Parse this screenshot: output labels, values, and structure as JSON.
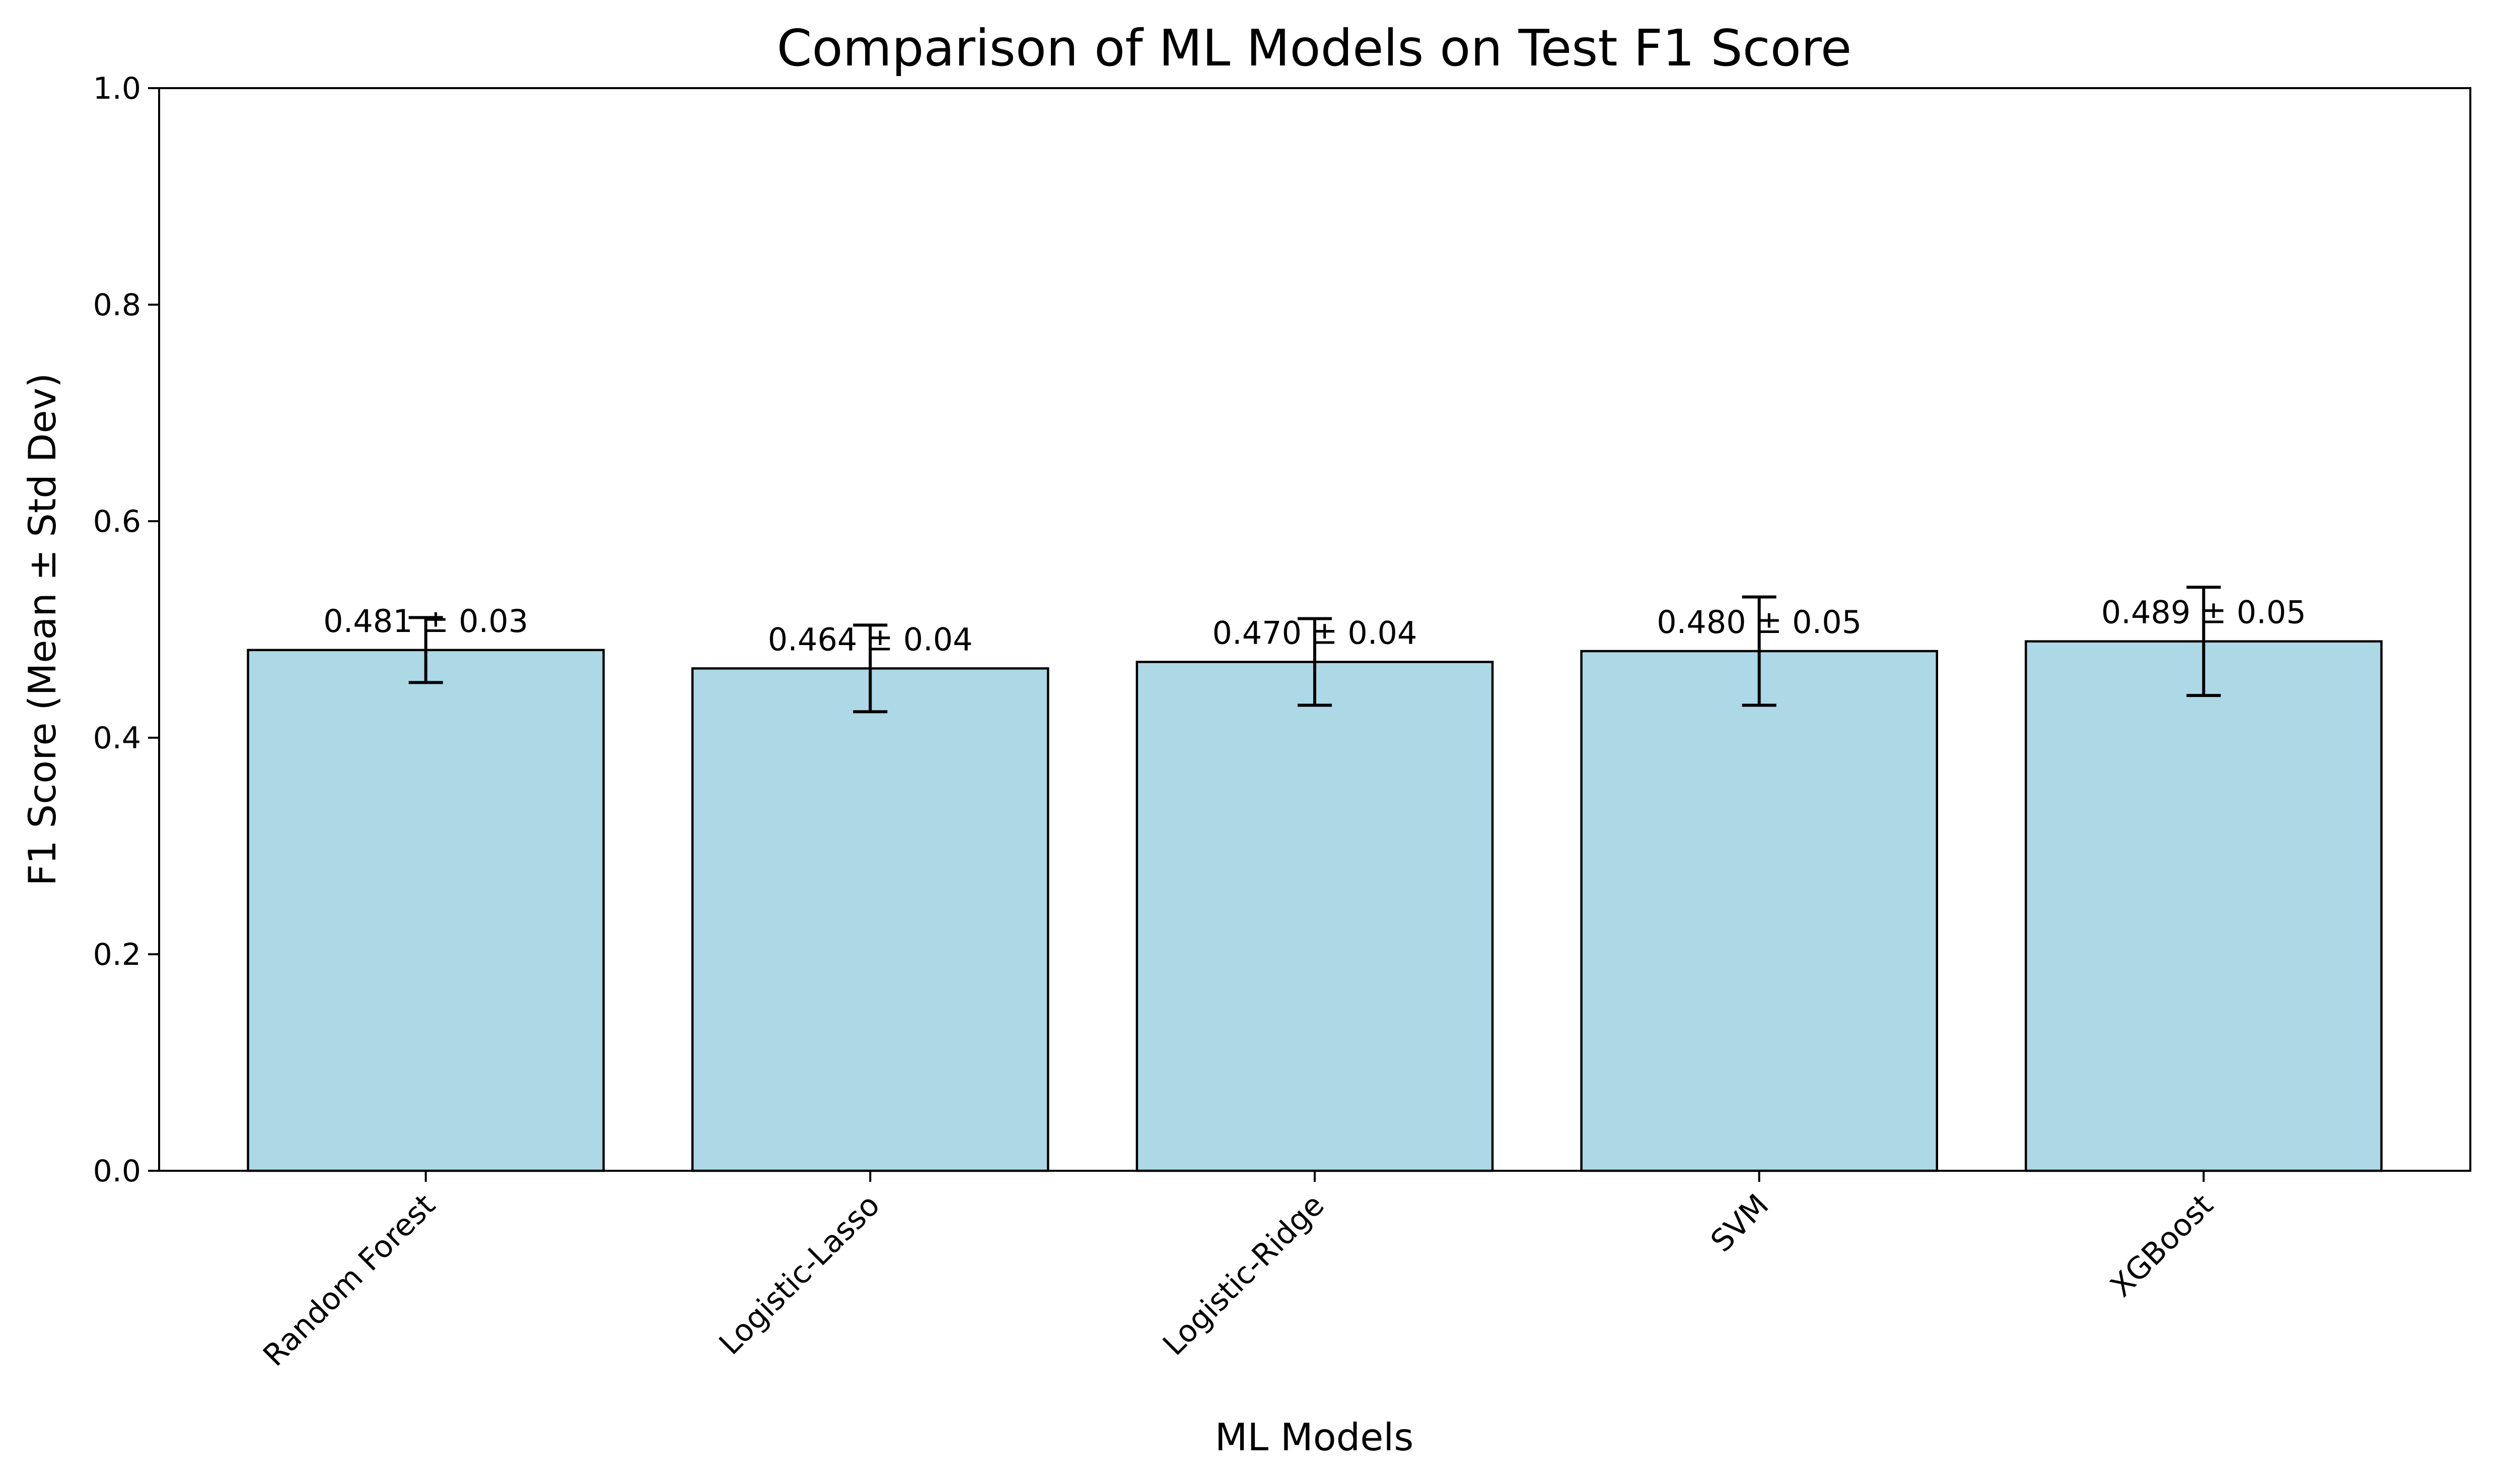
{
  "chart_data": {
    "type": "bar",
    "title": "Comparison of ML Models on Test F1 Score",
    "xlabel": "ML Models",
    "ylabel": "F1 Score (Mean ± Std Dev)",
    "categories": [
      "Random Forest",
      "Logistic-Lasso",
      "Logistic-Ridge",
      "SVM",
      "XGBoost"
    ],
    "values": [
      0.481,
      0.464,
      0.47,
      0.48,
      0.489
    ],
    "errors": [
      0.03,
      0.04,
      0.04,
      0.05,
      0.05
    ],
    "value_labels": [
      "0.481 ± 0.03",
      "0.464 ± 0.04",
      "0.470 ± 0.04",
      "0.480 ± 0.05",
      "0.489 ± 0.05"
    ],
    "ylim": [
      0,
      1.0
    ],
    "yticks": [
      0.0,
      0.2,
      0.4,
      0.6,
      0.8,
      1.0
    ],
    "ytick_labels": [
      "0.0",
      "0.2",
      "0.4",
      "0.6",
      "0.8",
      "1.0"
    ],
    "bar_color": "#add8e6",
    "edge_color": "#000000",
    "grid": false,
    "legend": false
  }
}
